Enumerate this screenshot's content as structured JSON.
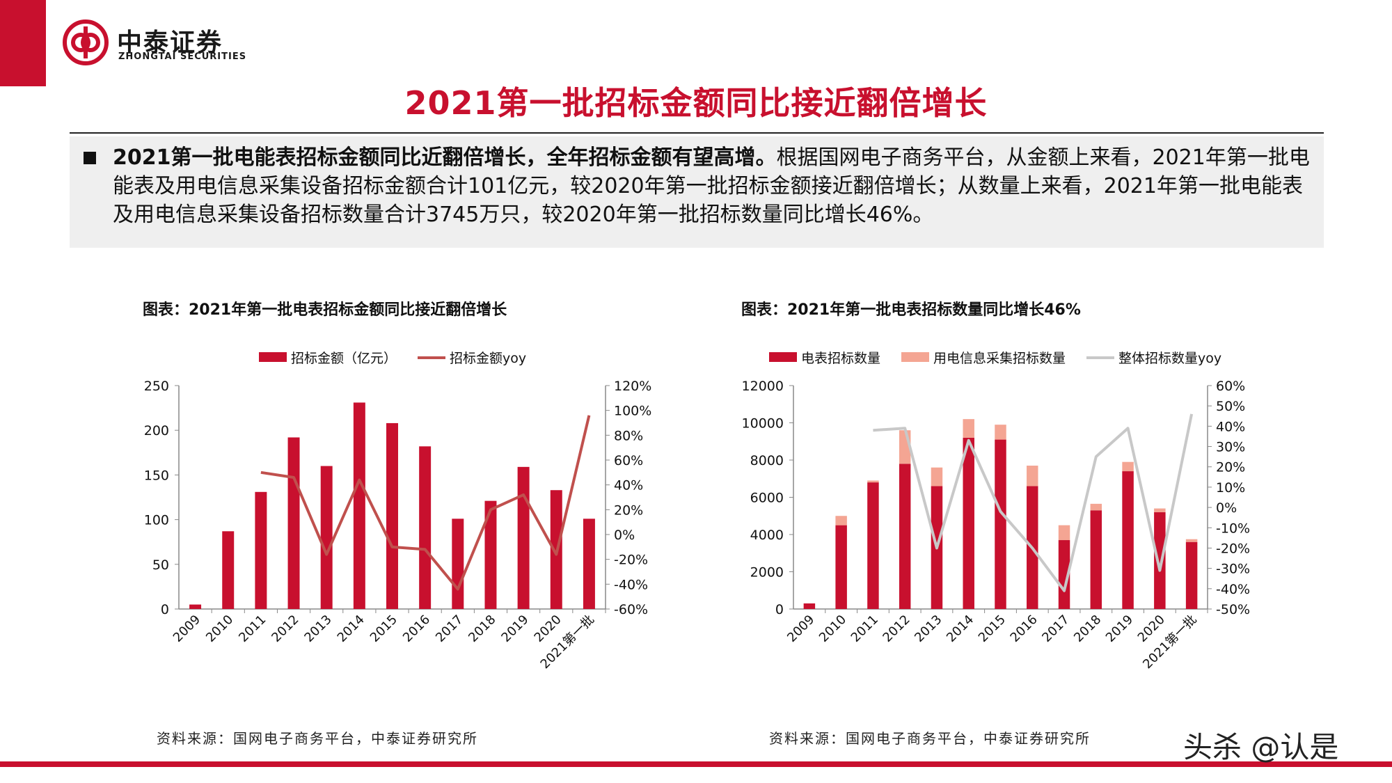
{
  "header": {
    "logo_cn": "中泰证券",
    "logo_en": "ZHONGTAI SECURITIES",
    "title": "2021第一批招标金额同比接近翻倍增长"
  },
  "summary": {
    "bold": "2021第一批电能表招标金额同比近翻倍增长，全年招标金额有望高增。",
    "text": "根据国网电子商务平台，从金额上来看，2021年第一批电能表及用电信息采集设备招标金额合计101亿元，较2020年第一批招标金额接近翻倍增长；从数量上来看，2021年第一批电能表及用电信息采集设备招标数量合计3745万只，较2020年第一批招标数量同比增长46%。"
  },
  "colors": {
    "brand_red": "#c8102e",
    "line_red": "#c0504d",
    "light_salmon": "#f4a593",
    "gray_line": "#c8c8c8"
  },
  "chart_data": [
    {
      "type": "bar+line",
      "title": "图表：2021年第一批电表招标金额同比接近翻倍增长",
      "source": "资料来源：国网电子商务平台，中泰证券研究所",
      "categories": [
        "2009",
        "2010",
        "2011",
        "2012",
        "2013",
        "2014",
        "2015",
        "2016",
        "2017",
        "2018",
        "2019",
        "2020",
        "2021第一批"
      ],
      "series": [
        {
          "name": "招标金额（亿元）",
          "type": "bar",
          "axis": "left",
          "values": [
            5,
            87,
            131,
            192,
            160,
            231,
            208,
            182,
            101,
            121,
            159,
            133,
            101
          ]
        },
        {
          "name": "招标金额yoy",
          "type": "line",
          "axis": "right",
          "values": [
            null,
            null,
            50,
            46,
            -16,
            44,
            -10,
            -12,
            -44,
            20,
            32,
            -16,
            96
          ]
        }
      ],
      "left_axis": {
        "min": 0,
        "max": 250,
        "ticks": [
          "0",
          "50",
          "100",
          "150",
          "200",
          "250"
        ]
      },
      "right_axis": {
        "min": -60,
        "max": 120,
        "ticks": [
          "-60%",
          "-40%",
          "-20%",
          "0%",
          "20%",
          "40%",
          "60%",
          "80%",
          "100%",
          "120%"
        ]
      },
      "legend_position": "top"
    },
    {
      "type": "stacked-bar+line",
      "title": "图表：2021年第一批电表招标数量同比增长46%",
      "source": "资料来源：国网电子商务平台，中泰证券研究所",
      "categories": [
        "2009",
        "2010",
        "2011",
        "2012",
        "2013",
        "2014",
        "2015",
        "2016",
        "2017",
        "2018",
        "2019",
        "2020",
        "2021第一批"
      ],
      "series": [
        {
          "name": "电表招标数量",
          "type": "bar",
          "axis": "left",
          "values": [
            300,
            4500,
            6800,
            7800,
            6600,
            9200,
            9100,
            6600,
            3700,
            5300,
            7400,
            5200,
            3600
          ]
        },
        {
          "name": "用电信息采集招标数量",
          "type": "bar",
          "axis": "left",
          "values": [
            0,
            500,
            100,
            1800,
            1000,
            1000,
            800,
            1100,
            800,
            350,
            500,
            200,
            150
          ]
        },
        {
          "name": "整体招标数量yoy",
          "type": "line",
          "axis": "right",
          "values": [
            null,
            null,
            38,
            39,
            -20,
            33,
            -2,
            -20,
            -41,
            25,
            39,
            -31,
            46
          ]
        }
      ],
      "left_axis": {
        "min": 0,
        "max": 12000,
        "ticks": [
          "0",
          "2000",
          "4000",
          "6000",
          "8000",
          "10000",
          "12000"
        ]
      },
      "right_axis": {
        "min": -50,
        "max": 60,
        "ticks": [
          "-50%",
          "-40%",
          "-30%",
          "-20%",
          "-10%",
          "0%",
          "10%",
          "20%",
          "30%",
          "40%",
          "50%",
          "60%"
        ]
      },
      "legend_position": "top"
    }
  ],
  "watermark": "头杀 @认是"
}
